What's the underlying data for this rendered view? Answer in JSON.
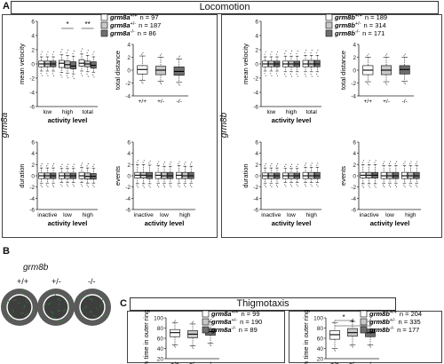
{
  "panels": {
    "a": "A",
    "b": "B",
    "c": "C"
  },
  "titles": {
    "locomotion": "Locomotion",
    "thigmotaxis": "Thigmotaxis"
  },
  "row_labels": {
    "grm8a": "grm8a",
    "grm8b": "grm8b"
  },
  "embryo_panel": {
    "gene": "grm8b",
    "genotypes": [
      "+/+",
      "+/-",
      "-/-"
    ],
    "colors": {
      "dish_outer": "#5a5a5a",
      "dish_inner": "#3e3e3e",
      "ring": "#ffffff",
      "speckle": "#2f7d3a"
    }
  },
  "colors": {
    "wt": "#ffffff",
    "het": "#c8c8c8",
    "mut": "#6e6e6e",
    "axis": "#222222"
  },
  "legends": {
    "grm8a_loc": [
      {
        "gene": "grm8a",
        "genotype": "+/+",
        "n": "n = 97"
      },
      {
        "gene": "grm8a",
        "genotype": "+/-",
        "n": "n = 187"
      },
      {
        "gene": "grm8a",
        "genotype": "-/-",
        "n": "n = 86"
      }
    ],
    "grm8b_loc": [
      {
        "gene": "grm8b",
        "genotype": "+/+",
        "n": "n = 189"
      },
      {
        "gene": "grm8b",
        "genotype": "+/-",
        "n": "n = 314"
      },
      {
        "gene": "grm8b",
        "genotype": "-/-",
        "n": "n = 171"
      }
    ],
    "grm8a_thig": [
      {
        "gene": "grm8a",
        "genotype": "+/+",
        "n": "n = 99"
      },
      {
        "gene": "grm8a",
        "genotype": "+/-",
        "n": "n = 190"
      },
      {
        "gene": "grm8a",
        "genotype": "-/-",
        "n": "n = 89"
      }
    ],
    "grm8b_thig": [
      {
        "gene": "grm8b",
        "genotype": "+/+",
        "n": "n = 204"
      },
      {
        "gene": "grm8b",
        "genotype": "+/-",
        "n": "n = 335"
      },
      {
        "gene": "grm8b",
        "genotype": "-/-",
        "n": "n = 177"
      }
    ]
  },
  "chart_data": [
    {
      "id": "a_vel",
      "type": "box",
      "ylabel": "mean velocity",
      "xlabel": "activity level",
      "ylim": [
        -6,
        6
      ],
      "yticks": [
        -6,
        -4,
        -2,
        0,
        2,
        4,
        6
      ],
      "categories": [
        "low",
        "high",
        "total"
      ],
      "annotations": [
        {
          "category": "high",
          "text": "*"
        },
        {
          "category": "total",
          "text": "**"
        }
      ],
      "series": [
        {
          "genotype": "+/+",
          "boxes": [
            [
              -1.0,
              -0.4,
              0.0,
              0.4,
              1.0
            ],
            [
              -1.2,
              -0.5,
              0.1,
              0.5,
              1.3
            ],
            [
              -1.0,
              -0.3,
              0.1,
              0.6,
              1.4
            ]
          ]
        },
        {
          "genotype": "+/-",
          "boxes": [
            [
              -1.0,
              -0.4,
              0.0,
              0.4,
              1.0
            ],
            [
              -1.3,
              -0.6,
              -0.1,
              0.4,
              1.2
            ],
            [
              -1.1,
              -0.4,
              0.0,
              0.4,
              1.2
            ]
          ]
        },
        {
          "genotype": "-/-",
          "boxes": [
            [
              -1.0,
              -0.4,
              0.0,
              0.4,
              1.0
            ],
            [
              -1.4,
              -0.7,
              -0.3,
              0.3,
              1.1
            ],
            [
              -1.2,
              -0.6,
              -0.2,
              0.3,
              1.0
            ]
          ]
        }
      ]
    },
    {
      "id": "a_dist",
      "type": "box",
      "ylabel": "total distance",
      "xlabel": "",
      "ylim": [
        -4,
        4
      ],
      "yticks": [
        -4,
        -2,
        0,
        2,
        4
      ],
      "categories": [
        "+/+",
        "+/-",
        "-/-"
      ],
      "series": [
        {
          "genotype": "+/+",
          "boxes": [
            [
              -1.6,
              -0.6,
              0.1,
              0.7,
              2.2
            ]
          ]
        },
        {
          "genotype": "+/-",
          "boxes": [
            [
              -1.7,
              -0.7,
              0.0,
              0.6,
              2.0
            ]
          ]
        },
        {
          "genotype": "-/-",
          "boxes": [
            [
              -1.9,
              -0.8,
              -0.2,
              0.5,
              1.7
            ]
          ]
        }
      ]
    },
    {
      "id": "a_dur",
      "type": "box",
      "ylabel": "duration",
      "xlabel": "activity level",
      "ylim": [
        -6,
        6
      ],
      "yticks": [
        -6,
        -4,
        -2,
        0,
        2,
        4,
        6
      ],
      "categories": [
        "inactive",
        "low",
        "high"
      ],
      "series": [
        {
          "genotype": "+/+",
          "boxes": [
            [
              -1.3,
              -0.5,
              0.0,
              0.5,
              1.4
            ],
            [
              -1.2,
              -0.5,
              0.0,
              0.5,
              1.3
            ],
            [
              -1.2,
              -0.5,
              0.0,
              0.6,
              1.5
            ]
          ]
        },
        {
          "genotype": "+/-",
          "boxes": [
            [
              -1.3,
              -0.5,
              0.0,
              0.5,
              1.4
            ],
            [
              -1.2,
              -0.5,
              0.0,
              0.5,
              1.3
            ],
            [
              -1.3,
              -0.6,
              -0.1,
              0.5,
              1.4
            ]
          ]
        },
        {
          "genotype": "-/-",
          "boxes": [
            [
              -1.3,
              -0.5,
              0.0,
              0.5,
              1.4
            ],
            [
              -1.2,
              -0.5,
              0.0,
              0.5,
              1.3
            ],
            [
              -1.3,
              -0.6,
              -0.1,
              0.4,
              1.3
            ]
          ]
        }
      ]
    },
    {
      "id": "a_evt",
      "type": "box",
      "ylabel": "events",
      "xlabel": "activity level",
      "ylim": [
        -6,
        6
      ],
      "yticks": [
        -6,
        -4,
        -2,
        0,
        2,
        4,
        6
      ],
      "categories": [
        "inactive",
        "low",
        "high"
      ],
      "series": [
        {
          "genotype": "+/+",
          "boxes": [
            [
              -1.4,
              -0.4,
              0.1,
              0.6,
              2.0
            ],
            [
              -1.3,
              -0.5,
              0.1,
              0.6,
              1.8
            ],
            [
              -1.3,
              -0.5,
              0.1,
              0.6,
              1.8
            ]
          ]
        },
        {
          "genotype": "+/-",
          "boxes": [
            [
              -1.4,
              -0.4,
              0.1,
              0.6,
              2.0
            ],
            [
              -1.3,
              -0.5,
              0.0,
              0.6,
              1.7
            ],
            [
              -1.3,
              -0.5,
              0.0,
              0.6,
              1.7
            ]
          ]
        },
        {
          "genotype": "-/-",
          "boxes": [
            [
              -1.4,
              -0.5,
              0.0,
              0.6,
              1.9
            ],
            [
              -1.3,
              -0.5,
              0.0,
              0.6,
              1.7
            ],
            [
              -1.3,
              -0.5,
              0.0,
              0.6,
              1.7
            ]
          ]
        }
      ]
    },
    {
      "id": "b_vel",
      "type": "box",
      "ylabel": "mean velocity",
      "xlabel": "activity level",
      "ylim": [
        -6,
        6
      ],
      "yticks": [
        -6,
        -4,
        -2,
        0,
        2,
        4,
        6
      ],
      "categories": [
        "low",
        "high",
        "total"
      ],
      "series": [
        {
          "genotype": "+/+",
          "boxes": [
            [
              -1.0,
              -0.4,
              0.0,
              0.4,
              1.0
            ],
            [
              -1.1,
              -0.4,
              0.0,
              0.4,
              1.1
            ],
            [
              -1.1,
              -0.4,
              0.0,
              0.5,
              1.2
            ]
          ]
        },
        {
          "genotype": "+/-",
          "boxes": [
            [
              -1.0,
              -0.4,
              0.0,
              0.4,
              1.0
            ],
            [
              -1.1,
              -0.4,
              0.0,
              0.4,
              1.1
            ],
            [
              -1.1,
              -0.4,
              0.0,
              0.5,
              1.2
            ]
          ]
        },
        {
          "genotype": "-/-",
          "boxes": [
            [
              -1.0,
              -0.4,
              0.0,
              0.4,
              1.0
            ],
            [
              -1.1,
              -0.4,
              0.0,
              0.4,
              1.1
            ],
            [
              -1.1,
              -0.4,
              0.0,
              0.5,
              1.2
            ]
          ]
        }
      ]
    },
    {
      "id": "b_dist",
      "type": "box",
      "ylabel": "total distance",
      "xlabel": "",
      "ylim": [
        -4,
        4
      ],
      "yticks": [
        -4,
        -2,
        0,
        2,
        4
      ],
      "categories": [
        "+/+",
        "+/-",
        "-/-"
      ],
      "series": [
        {
          "genotype": "+/+",
          "boxes": [
            [
              -1.8,
              -0.7,
              0.0,
              0.7,
              2.0
            ]
          ]
        },
        {
          "genotype": "+/-",
          "boxes": [
            [
              -1.8,
              -0.7,
              0.0,
              0.7,
              2.0
            ]
          ]
        },
        {
          "genotype": "-/-",
          "boxes": [
            [
              -1.7,
              -0.6,
              0.1,
              0.7,
              2.0
            ]
          ]
        }
      ]
    },
    {
      "id": "b_dur",
      "type": "box",
      "ylabel": "duration",
      "xlabel": "activity level",
      "ylim": [
        -6,
        6
      ],
      "yticks": [
        -6,
        -4,
        -2,
        0,
        2,
        4,
        6
      ],
      "categories": [
        "inactive",
        "low",
        "high"
      ],
      "series": [
        {
          "genotype": "+/+",
          "boxes": [
            [
              -1.3,
              -0.5,
              0.0,
              0.5,
              1.4
            ],
            [
              -1.2,
              -0.5,
              0.0,
              0.5,
              1.3
            ],
            [
              -1.2,
              -0.5,
              0.0,
              0.6,
              1.5
            ]
          ]
        },
        {
          "genotype": "+/-",
          "boxes": [
            [
              -1.3,
              -0.5,
              0.0,
              0.5,
              1.4
            ],
            [
              -1.2,
              -0.5,
              0.0,
              0.5,
              1.3
            ],
            [
              -1.2,
              -0.5,
              0.0,
              0.6,
              1.5
            ]
          ]
        },
        {
          "genotype": "-/-",
          "boxes": [
            [
              -1.3,
              -0.5,
              0.0,
              0.5,
              1.4
            ],
            [
              -1.2,
              -0.5,
              0.0,
              0.5,
              1.3
            ],
            [
              -1.2,
              -0.5,
              0.0,
              0.6,
              1.5
            ]
          ]
        }
      ]
    },
    {
      "id": "b_evt",
      "type": "box",
      "ylabel": "events",
      "xlabel": "activity level",
      "ylim": [
        -6,
        6
      ],
      "yticks": [
        -6,
        -4,
        -2,
        0,
        2,
        4,
        6
      ],
      "categories": [
        "inactive",
        "low",
        "high"
      ],
      "series": [
        {
          "genotype": "+/+",
          "boxes": [
            [
              -1.4,
              -0.4,
              0.1,
              0.6,
              2.0
            ],
            [
              -1.3,
              -0.5,
              0.0,
              0.6,
              1.8
            ],
            [
              -1.3,
              -0.5,
              0.0,
              0.6,
              1.8
            ]
          ]
        },
        {
          "genotype": "+/-",
          "boxes": [
            [
              -1.4,
              -0.4,
              0.1,
              0.6,
              2.0
            ],
            [
              -1.3,
              -0.5,
              0.0,
              0.6,
              1.8
            ],
            [
              -1.3,
              -0.5,
              0.0,
              0.6,
              1.8
            ]
          ]
        },
        {
          "genotype": "-/-",
          "boxes": [
            [
              -1.4,
              -0.4,
              0.1,
              0.6,
              2.0
            ],
            [
              -1.3,
              -0.5,
              0.0,
              0.6,
              1.8
            ],
            [
              -1.3,
              -0.5,
              0.0,
              0.6,
              1.8
            ]
          ]
        }
      ]
    },
    {
      "id": "c_a",
      "type": "box",
      "ylabel": "% time in outer ring",
      "xlabel": "",
      "ylim": [
        20,
        100
      ],
      "yticks": [
        20,
        40,
        60,
        80,
        100
      ],
      "categories": [
        "+/+",
        "+/-",
        "-/-"
      ],
      "series": [
        {
          "genotype": "+/+",
          "boxes": [
            [
              47,
              63,
              71,
              77,
              90
            ]
          ]
        },
        {
          "genotype": "+/-",
          "boxes": [
            [
              45,
              61,
              68,
              75,
              88
            ]
          ]
        },
        {
          "genotype": "-/-",
          "boxes": [
            [
              50,
              66,
              73,
              79,
              92
            ]
          ]
        }
      ]
    },
    {
      "id": "c_b",
      "type": "box",
      "ylabel": "% time in outer ring",
      "xlabel": "",
      "ylim": [
        20,
        100
      ],
      "yticks": [
        20,
        40,
        60,
        80,
        100
      ],
      "categories": [
        "+/+",
        "+/-",
        "-/-"
      ],
      "annotations": [
        {
          "between": [
            "+/+",
            "+/-"
          ],
          "text": "*"
        },
        {
          "between": [
            "+/+",
            "-/-"
          ],
          "text": "*"
        }
      ],
      "series": [
        {
          "genotype": "+/+",
          "boxes": [
            [
              40,
              58,
              67,
              75,
              90
            ]
          ]
        },
        {
          "genotype": "+/-",
          "boxes": [
            [
              47,
              64,
              71,
              79,
              93
            ]
          ]
        },
        {
          "genotype": "-/-",
          "boxes": [
            [
              47,
              63,
              71,
              78,
              93
            ]
          ]
        }
      ]
    }
  ]
}
